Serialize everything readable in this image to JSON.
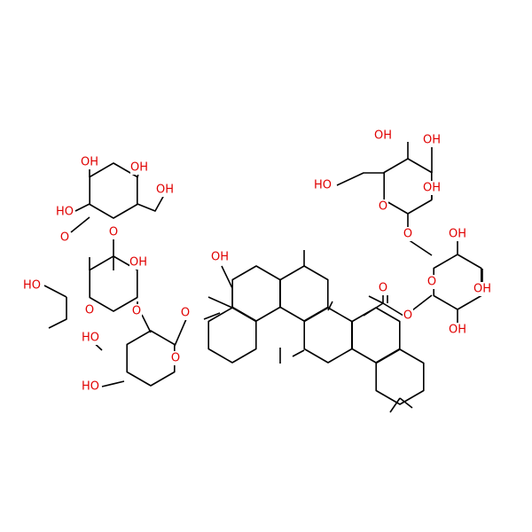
{
  "atoms": [
    {
      "label": "OH"
    },
    {
      "label": "OH"
    },
    {
      "label": "HO"
    },
    {
      "label": "OH"
    },
    {
      "label": "O"
    },
    {
      "label": "O"
    },
    {
      "label": "OH"
    },
    {
      "label": "O"
    },
    {
      "label": "OH"
    },
    {
      "label": "OH"
    },
    {
      "label": "O"
    },
    {
      "label": "O"
    },
    {
      "label": "OH"
    },
    {
      "label": "OH"
    },
    {
      "label": "HO"
    },
    {
      "label": "O"
    },
    {
      "label": "OH"
    },
    {
      "label": "O"
    },
    {
      "label": "OH"
    },
    {
      "label": "HO"
    },
    {
      "label": "O"
    },
    {
      "label": "O"
    },
    {
      "label": "HO"
    },
    {
      "label": "HO"
    },
    {
      "label": "O"
    },
    {
      "label": "O"
    },
    {
      "label": "OH"
    }
  ]
}
